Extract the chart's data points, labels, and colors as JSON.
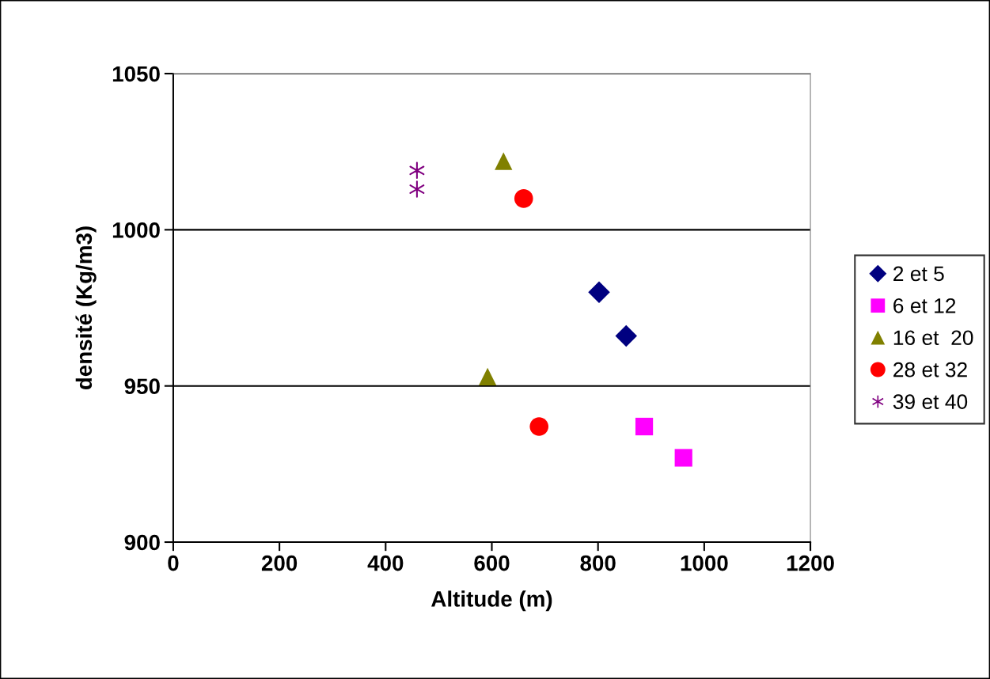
{
  "chart_data": {
    "type": "scatter",
    "xlabel": "Altitude (m)",
    "ylabel": "densité (Kg/m3)",
    "xlim": [
      0,
      1200
    ],
    "xticks": [
      0,
      200,
      400,
      600,
      800,
      1000,
      1200
    ],
    "ylim": [
      900,
      1050
    ],
    "yticks": [
      900,
      950,
      1000,
      1050
    ],
    "grid": "y",
    "legend": "right",
    "series": [
      {
        "name": "2 et 5",
        "color": "#000080",
        "marker": "diamond",
        "x": [
          802,
          853
        ],
        "values": [
          980,
          966
        ]
      },
      {
        "name": "6 et 12",
        "color": "#ff00ff",
        "marker": "square",
        "x": [
          887,
          961
        ],
        "values": [
          937,
          927
        ]
      },
      {
        "name": "16 et  20",
        "color": "#808000",
        "marker": "triangle",
        "x": [
          622,
          592
        ],
        "values": [
          1022,
          953
        ]
      },
      {
        "name": "28 et 32",
        "color": "#ff0000",
        "marker": "circle",
        "x": [
          660,
          689
        ],
        "values": [
          1010,
          937
        ]
      },
      {
        "name": "39 et 40",
        "color": "#800080",
        "marker": "cross",
        "x": [
          459,
          459
        ],
        "values": [
          1019,
          1013
        ]
      }
    ]
  }
}
